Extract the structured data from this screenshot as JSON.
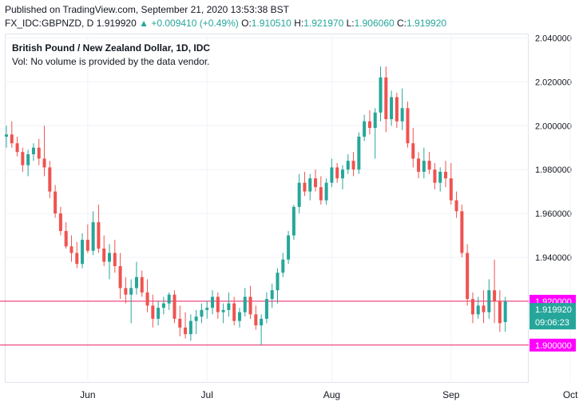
{
  "header": {
    "published": "Published on TradingView.com, September 21, 2020 13:53:38 BST",
    "symbol": "FX_IDC:GBPNZD, D",
    "last": "1.919920",
    "arrow": "▲",
    "change": "+0.009410 (+0.49%)",
    "o_label": "O:",
    "o_value": "1.910510",
    "h_label": "H:",
    "h_value": "1.921970",
    "l_label": "L:",
    "l_value": "1.906060",
    "c_label": "C:",
    "c_value": "1.919920"
  },
  "legend": {
    "title": "British Pound / New Zealand Dollar, 1D, IDC",
    "volume_note": "Vol: No volume is provided by the data vendor."
  },
  "colors": {
    "up": "#26a69a",
    "down": "#ef5350",
    "hline": "#e91e63",
    "hline_label": "#ff00ff",
    "grid": "#f0f3fa"
  },
  "chart_data": {
    "type": "candlestick",
    "title": "British Pound / New Zealand Dollar, 1D, IDC",
    "x_tick_labels": [
      "Jun",
      "Jul",
      "Aug",
      "Sep",
      "Oct"
    ],
    "y_tick_labels": [
      "2.040000",
      "2.020000",
      "2.000000",
      "1.980000",
      "1.960000",
      "1.940000"
    ],
    "ylim": [
      1.8828,
      2.042
    ],
    "y_ticks": [
      2.04,
      2.02,
      2.0,
      1.98,
      1.96,
      1.94
    ],
    "month_start_index": [
      15,
      37,
      60,
      82,
      104
    ],
    "price_label": "1.919920",
    "countdown": "09:06:23",
    "horizontal_lines": [
      {
        "value": 1.92,
        "label": "1.920000"
      },
      {
        "value": 1.9,
        "label": "1.900000"
      }
    ],
    "candles": [
      [
        1.995,
        2.0,
        1.99,
        1.996
      ],
      [
        1.996,
        2.002,
        1.99,
        1.992
      ],
      [
        1.992,
        1.995,
        1.986,
        1.988
      ],
      [
        1.988,
        1.99,
        1.979,
        1.982
      ],
      [
        1.982,
        1.989,
        1.977,
        1.987
      ],
      [
        1.987,
        1.992,
        1.984,
        1.99
      ],
      [
        1.99,
        1.994,
        1.982,
        1.985
      ],
      [
        1.985,
        2.0,
        1.977,
        1.981
      ],
      [
        1.981,
        1.984,
        1.967,
        1.97
      ],
      [
        1.97,
        1.973,
        1.958,
        1.96
      ],
      [
        1.96,
        1.963,
        1.95,
        1.952
      ],
      [
        1.952,
        1.956,
        1.944,
        1.945
      ],
      [
        1.945,
        1.95,
        1.938,
        1.942
      ],
      [
        1.942,
        1.947,
        1.935,
        1.937
      ],
      [
        1.937,
        1.951,
        1.935,
        1.948
      ],
      [
        1.948,
        1.955,
        1.942,
        1.943
      ],
      [
        1.943,
        1.961,
        1.941,
        1.956
      ],
      [
        1.956,
        1.964,
        1.942,
        1.944
      ],
      [
        1.944,
        1.95,
        1.936,
        1.938
      ],
      [
        1.938,
        1.946,
        1.93,
        1.942
      ],
      [
        1.942,
        1.948,
        1.933,
        1.936
      ],
      [
        1.936,
        1.942,
        1.921,
        1.926
      ],
      [
        1.926,
        1.931,
        1.919,
        1.923
      ],
      [
        1.923,
        1.93,
        1.91,
        1.926
      ],
      [
        1.926,
        1.938,
        1.923,
        1.931
      ],
      [
        1.931,
        1.934,
        1.922,
        1.924
      ],
      [
        1.924,
        1.93,
        1.915,
        1.918
      ],
      [
        1.918,
        1.923,
        1.908,
        1.912
      ],
      [
        1.912,
        1.92,
        1.909,
        1.917
      ],
      [
        1.917,
        1.922,
        1.914,
        1.919
      ],
      [
        1.919,
        1.924,
        1.916,
        1.923
      ],
      [
        1.923,
        1.925,
        1.91,
        1.912
      ],
      [
        1.912,
        1.918,
        1.904,
        1.908
      ],
      [
        1.908,
        1.915,
        1.903,
        1.905
      ],
      [
        1.905,
        1.914,
        1.902,
        1.911
      ],
      [
        1.911,
        1.916,
        1.905,
        1.913
      ],
      [
        1.913,
        1.919,
        1.91,
        1.916
      ],
      [
        1.916,
        1.92,
        1.912,
        1.917
      ],
      [
        1.917,
        1.925,
        1.914,
        1.922
      ],
      [
        1.922,
        1.924,
        1.912,
        1.915
      ],
      [
        1.915,
        1.919,
        1.91,
        1.916
      ],
      [
        1.916,
        1.924,
        1.913,
        1.919
      ],
      [
        1.919,
        1.922,
        1.909,
        1.911
      ],
      [
        1.911,
        1.917,
        1.908,
        1.915
      ],
      [
        1.915,
        1.926,
        1.913,
        1.922
      ],
      [
        1.922,
        1.927,
        1.912,
        1.914
      ],
      [
        1.914,
        1.918,
        1.907,
        1.909
      ],
      [
        1.909,
        1.914,
        1.9,
        1.912
      ],
      [
        1.912,
        1.924,
        1.91,
        1.921
      ],
      [
        1.921,
        1.928,
        1.917,
        1.925
      ],
      [
        1.925,
        1.935,
        1.919,
        1.933
      ],
      [
        1.933,
        1.942,
        1.931,
        1.939
      ],
      [
        1.939,
        1.952,
        1.937,
        1.95
      ],
      [
        1.95,
        1.964,
        1.948,
        1.963
      ],
      [
        1.963,
        1.978,
        1.96,
        1.974
      ],
      [
        1.974,
        1.979,
        1.968,
        1.97
      ],
      [
        1.97,
        1.978,
        1.966,
        1.976
      ],
      [
        1.976,
        1.98,
        1.97,
        1.972
      ],
      [
        1.972,
        1.977,
        1.964,
        1.966
      ],
      [
        1.966,
        1.976,
        1.964,
        1.974
      ],
      [
        1.974,
        1.985,
        1.972,
        1.981
      ],
      [
        1.981,
        1.983,
        1.974,
        1.976
      ],
      [
        1.976,
        1.982,
        1.971,
        1.98
      ],
      [
        1.98,
        1.987,
        1.978,
        1.984
      ],
      [
        1.984,
        1.988,
        1.977,
        1.98
      ],
      [
        1.98,
        1.997,
        1.978,
        1.995
      ],
      [
        1.995,
        2.005,
        1.993,
        2.002
      ],
      [
        2.002,
        2.007,
        1.996,
        1.999
      ],
      [
        1.999,
        2.008,
        1.985,
        2.006
      ],
      [
        2.006,
        2.027,
        2.002,
        2.022
      ],
      [
        2.022,
        2.027,
        1.997,
        2.003
      ],
      [
        2.003,
        2.016,
        2.0,
        2.013
      ],
      [
        2.013,
        2.015,
        1.999,
        2.002
      ],
      [
        2.002,
        2.017,
        1.998,
        2.008
      ],
      [
        2.008,
        2.011,
        1.99,
        1.992
      ],
      [
        1.992,
        1.999,
        1.981,
        1.985
      ],
      [
        1.985,
        1.988,
        1.976,
        1.979
      ],
      [
        1.979,
        1.99,
        1.976,
        1.984
      ],
      [
        1.984,
        1.988,
        1.978,
        1.98
      ],
      [
        1.98,
        1.983,
        1.971,
        1.974
      ],
      [
        1.974,
        1.981,
        1.97,
        1.979
      ],
      [
        1.979,
        1.984,
        1.972,
        1.976
      ],
      [
        1.976,
        1.983,
        1.964,
        1.966
      ],
      [
        1.966,
        1.97,
        1.958,
        1.961
      ],
      [
        1.961,
        1.964,
        1.94,
        1.942
      ],
      [
        1.942,
        1.946,
        1.918,
        1.921
      ],
      [
        1.921,
        1.924,
        1.91,
        1.914
      ],
      [
        1.914,
        1.922,
        1.912,
        1.918
      ],
      [
        1.918,
        1.925,
        1.91,
        1.915
      ],
      [
        1.915,
        1.93,
        1.912,
        1.925
      ],
      [
        1.925,
        1.939,
        1.91,
        1.92
      ],
      [
        1.92,
        1.925,
        1.906,
        1.91
      ],
      [
        1.9105,
        1.922,
        1.9061,
        1.9199
      ]
    ]
  }
}
